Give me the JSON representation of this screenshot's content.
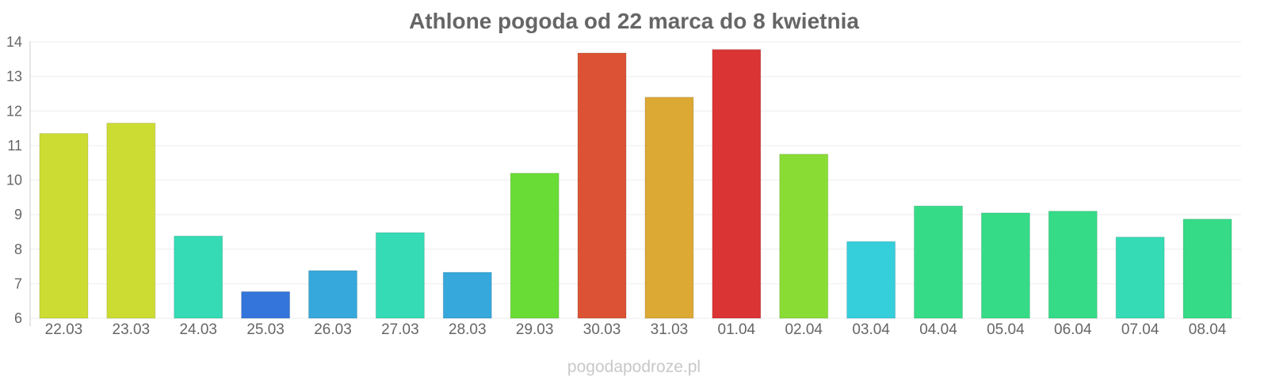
{
  "chart_data": {
    "type": "bar",
    "title": "Athlone pogoda od 22 marca do 8 kwietnia",
    "categories": [
      "22.03",
      "23.03",
      "24.03",
      "25.03",
      "26.03",
      "27.03",
      "28.03",
      "29.03",
      "30.03",
      "31.03",
      "01.04",
      "02.04",
      "03.04",
      "04.04",
      "05.04",
      "06.04",
      "07.04",
      "08.04"
    ],
    "values": [
      11.35,
      11.65,
      8.38,
      6.77,
      7.38,
      8.48,
      7.33,
      10.2,
      13.68,
      12.4,
      13.78,
      10.75,
      8.22,
      9.25,
      9.05,
      9.1,
      8.35,
      8.87
    ],
    "colors": [
      "#cddc32",
      "#cddc32",
      "#34dbb5",
      "#3475db",
      "#36a8db",
      "#34dbb5",
      "#36a8db",
      "#69dc35",
      "#db5235",
      "#dba934",
      "#db3434",
      "#89dc34",
      "#35cedb",
      "#35db87",
      "#35db87",
      "#35db87",
      "#34dbb5",
      "#35db87"
    ],
    "ylim": [
      6,
      14
    ],
    "yticks": [
      6,
      7,
      8,
      9,
      10,
      11,
      12,
      13,
      14
    ],
    "xlabel": "",
    "ylabel": "",
    "grid": true,
    "watermark": "pogodapodroze.pl"
  }
}
